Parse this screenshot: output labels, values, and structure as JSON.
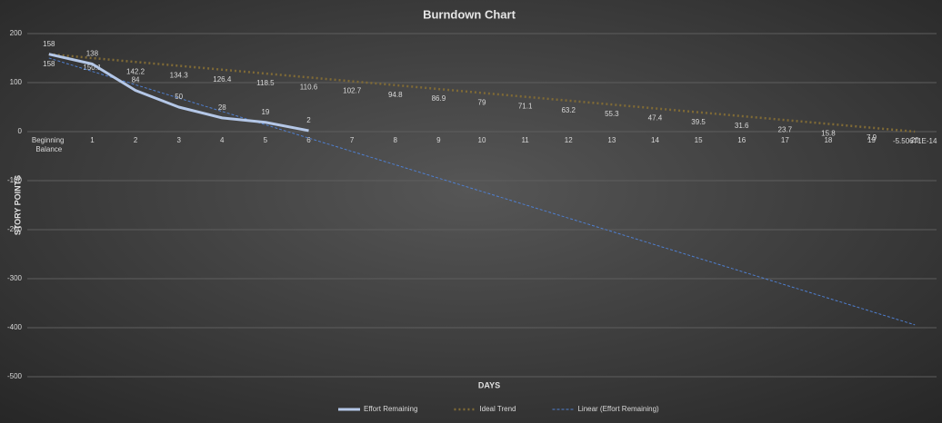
{
  "chart_data": {
    "type": "line",
    "title": "Burndown Chart",
    "x_label": "DAYS",
    "y_label": "STORY POINTS",
    "categories": [
      "Beginning Balance",
      "1",
      "2",
      "3",
      "4",
      "5",
      "6",
      "7",
      "8",
      "9",
      "10",
      "11",
      "12",
      "13",
      "14",
      "15",
      "16",
      "17",
      "18",
      "19",
      "20"
    ],
    "ylim": [
      -500,
      200
    ],
    "yticks": [
      200,
      100,
      0,
      -100,
      -200,
      -300,
      -400,
      -500
    ],
    "grid": true,
    "legend": "bottom",
    "series": [
      {
        "name": "Effort Remaining",
        "color": "#b4c7e7",
        "style": "solid",
        "labels": "above",
        "values": [
          158,
          138,
          84,
          50,
          28,
          19,
          2,
          null,
          null,
          null,
          null,
          null,
          null,
          null,
          null,
          null,
          null,
          null,
          null,
          null,
          null
        ]
      },
      {
        "name": "Ideal Trend",
        "color": "#7f6a36",
        "style": "dotted",
        "labels": "below",
        "values": [
          158,
          150.1,
          142.2,
          134.3,
          126.4,
          118.5,
          110.6,
          102.7,
          94.8,
          86.9,
          79,
          71.1,
          63.2,
          55.3,
          47.4,
          39.5,
          31.6,
          23.7,
          15.8,
          7.9,
          -5.50671e-14
        ],
        "value_labels": [
          "158",
          "150.1",
          "142.2",
          "134.3",
          "126.4",
          "118.5",
          "110.6",
          "102.7",
          "94.8",
          "86.9",
          "79",
          "71.1",
          "63.2",
          "55.3",
          "47.4",
          "39.5",
          "31.6",
          "23.7",
          "15.8",
          "7.9",
          "-5.50671E-14"
        ]
      },
      {
        "name": "Linear (Effort Remaining)",
        "color": "#4f7fd0",
        "style": "dashed",
        "values": [
          150.1,
          122.9,
          95.6,
          68.4,
          41.2,
          14.0,
          -13.2,
          -40.4,
          -67.6,
          -94.9,
          -122.1,
          -149.3,
          -176.5,
          -203.7,
          -230.9,
          -258.1,
          -285.3,
          -312.6,
          -339.8,
          -367.0,
          -394.2
        ]
      }
    ]
  }
}
